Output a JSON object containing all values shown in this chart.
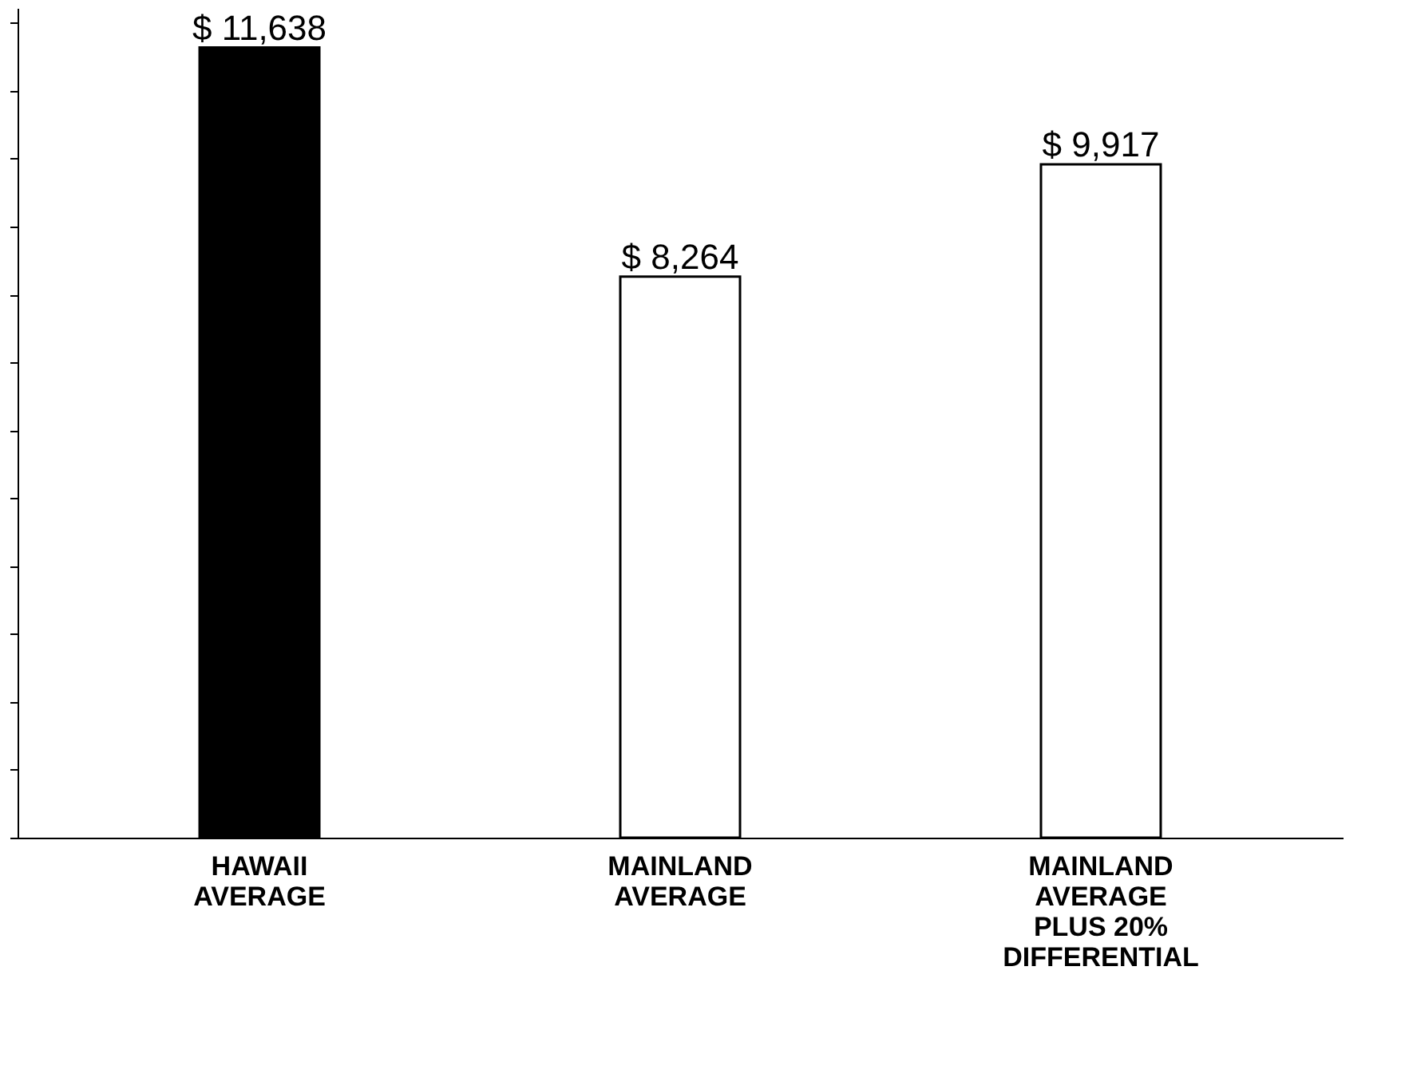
{
  "chart_data": {
    "type": "bar",
    "relative": false,
    "categories": [
      "HAWAII\nAVERAGE",
      "MAINLAND\nAVERAGE",
      "MAINLAND\nAVERAGE\nPLUS 20%\nDIFFERENTIAL"
    ],
    "values": [
      11638,
      8264,
      9917
    ],
    "value_labels": [
      "$ 11,638",
      "$ 8,264",
      "$ 9,917"
    ],
    "colors": [
      "#000000",
      "#ffffff",
      "#ffffff"
    ]
  }
}
